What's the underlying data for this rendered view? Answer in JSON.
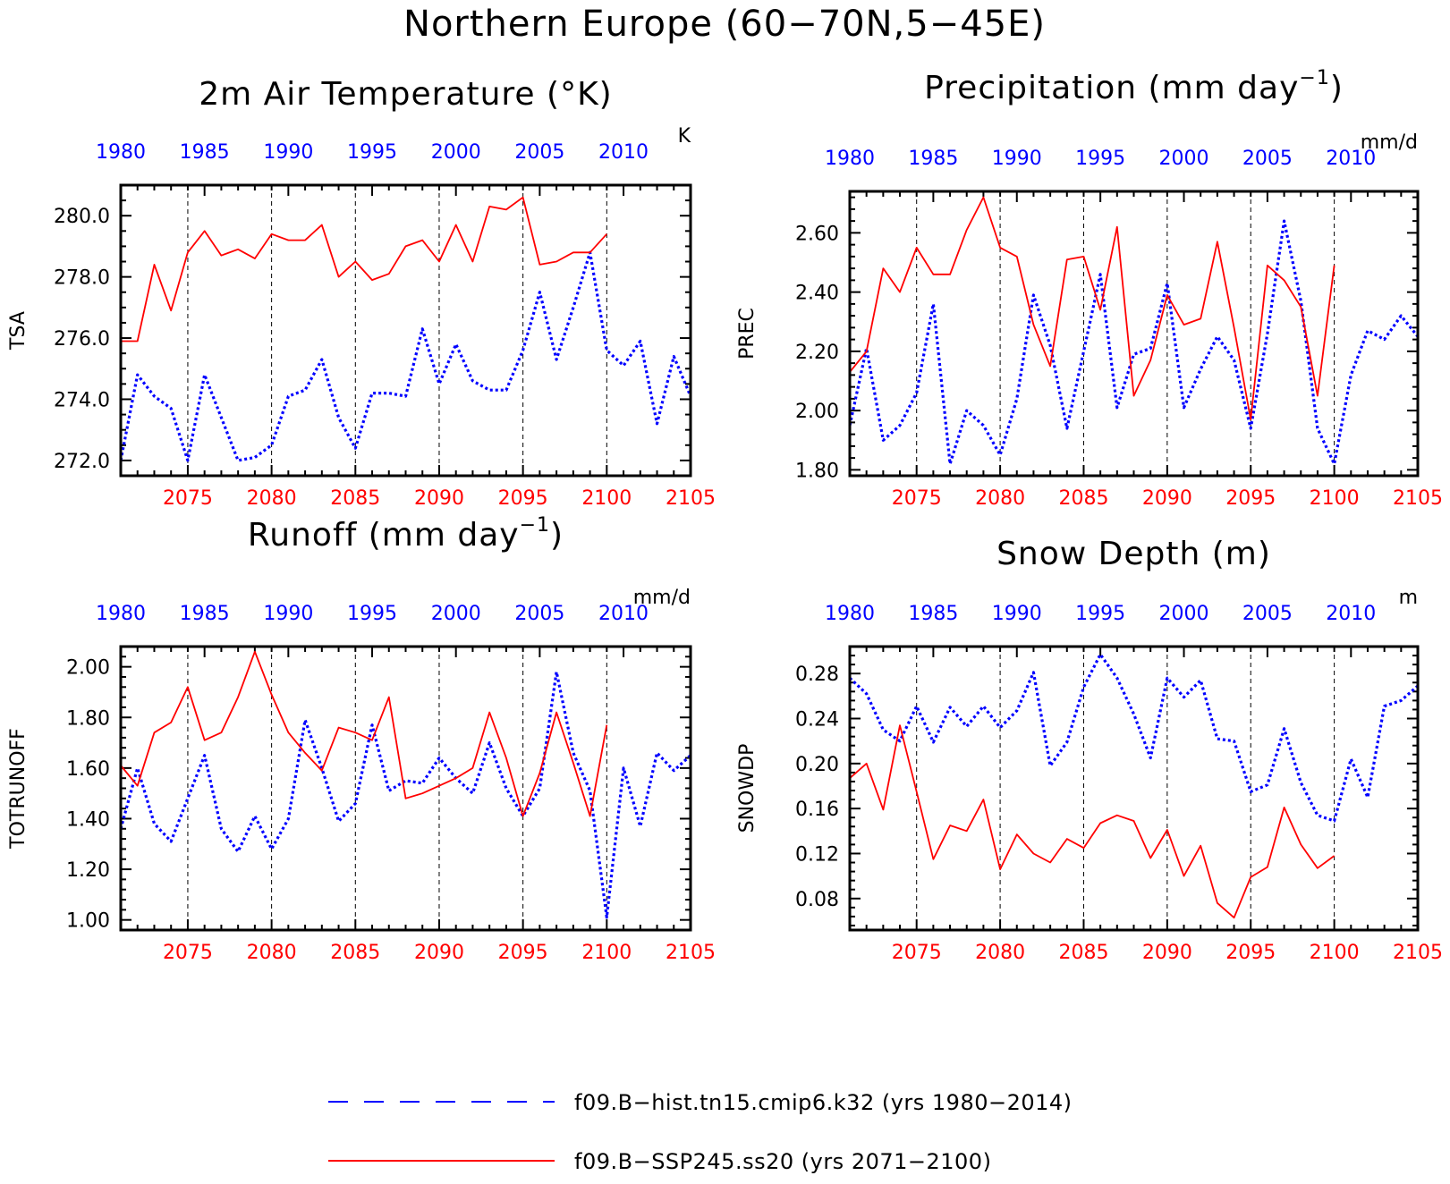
{
  "figure_title": "Northern Europe (60−70N,5−45E)",
  "colors": {
    "hist": "#0000ff",
    "future": "#ff0000",
    "vline": "#000000"
  },
  "legend": [
    {
      "label": "f09.B−hist.tn15.cmip6.k32 (yrs 1980−2014)",
      "color": "#0000ff",
      "style": "dashed"
    },
    {
      "label": "f09.B−SSP245.ss20 (yrs 2071−2100)",
      "color": "#ff0000",
      "style": "solid"
    }
  ],
  "chart_data": [
    {
      "type": "line",
      "title_main": "2m Air Temperature (°K)",
      "title_sup": "",
      "title_after": "",
      "ylabel": "TSA",
      "unit": "K",
      "ylim": [
        271.5,
        281.0
      ],
      "yticks": [
        272.0,
        274.0,
        276.0,
        278.0,
        280.0
      ],
      "yticklabels": [
        "272.0",
        "274.0",
        "276.0",
        "278.0",
        "280.0"
      ],
      "yminor": 0.5,
      "xlim_bottom": [
        2071,
        2105
      ],
      "xticks_bottom": [
        2075,
        2080,
        2085,
        2090,
        2095,
        2100,
        2105
      ],
      "xlim_top": [
        1980,
        2014
      ],
      "xticks_top": [
        1980,
        1985,
        1990,
        1995,
        2000,
        2005,
        2010
      ],
      "vlines": [
        2075,
        2080,
        2085,
        2090,
        2095,
        2100
      ],
      "series": [
        {
          "key": "hist",
          "axis": "top",
          "style": "dashed",
          "x": [
            1980,
            1981,
            1982,
            1983,
            1984,
            1985,
            1986,
            1987,
            1988,
            1989,
            1990,
            1991,
            1992,
            1993,
            1994,
            1995,
            1996,
            1997,
            1998,
            1999,
            2000,
            2001,
            2002,
            2003,
            2004,
            2005,
            2006,
            2007,
            2008,
            2009,
            2010,
            2011,
            2012,
            2013,
            2014
          ],
          "values": [
            272.0,
            274.8,
            274.1,
            273.7,
            272.0,
            274.8,
            273.4,
            272.0,
            272.1,
            272.5,
            274.1,
            274.3,
            275.3,
            273.4,
            272.4,
            274.2,
            274.2,
            274.1,
            276.3,
            274.5,
            275.8,
            274.6,
            274.3,
            274.3,
            275.6,
            277.5,
            275.3,
            277.0,
            278.8,
            275.6,
            275.1,
            275.9,
            273.2,
            275.4,
            274.1
          ]
        },
        {
          "key": "future",
          "axis": "bottom",
          "style": "solid",
          "x": [
            2071,
            2072,
            2073,
            2074,
            2075,
            2076,
            2077,
            2078,
            2079,
            2080,
            2081,
            2082,
            2083,
            2084,
            2085,
            2086,
            2087,
            2088,
            2089,
            2090,
            2091,
            2092,
            2093,
            2094,
            2095,
            2096,
            2097,
            2098,
            2099,
            2100
          ],
          "values": [
            275.9,
            275.9,
            278.4,
            276.9,
            278.8,
            279.5,
            278.7,
            278.9,
            278.6,
            279.4,
            279.2,
            279.2,
            279.7,
            278.0,
            278.5,
            277.9,
            278.1,
            279.0,
            279.2,
            278.5,
            279.7,
            278.5,
            280.3,
            280.2,
            280.6,
            278.4,
            278.5,
            278.8,
            278.8,
            279.4
          ]
        }
      ]
    },
    {
      "type": "line",
      "title_main": "Precipitation (mm day",
      "title_sup": "−1",
      "title_after": ")",
      "ylabel": "PREC",
      "unit": "mm/d",
      "ylim": [
        1.78,
        2.74
      ],
      "yticks": [
        1.8,
        2.0,
        2.2,
        2.4,
        2.6
      ],
      "yticklabels": [
        "1.80",
        "2.00",
        "2.20",
        "2.40",
        "2.60"
      ],
      "yminor": 0.04,
      "xlim_bottom": [
        2071,
        2105
      ],
      "xticks_bottom": [
        2075,
        2080,
        2085,
        2090,
        2095,
        2100,
        2105
      ],
      "xlim_top": [
        1980,
        2014
      ],
      "xticks_top": [
        1980,
        1985,
        1990,
        1995,
        2000,
        2005,
        2010
      ],
      "vlines": [
        2075,
        2080,
        2085,
        2090,
        2095,
        2100
      ],
      "series": [
        {
          "key": "hist",
          "axis": "top",
          "style": "dashed",
          "x": [
            1980,
            1981,
            1982,
            1983,
            1984,
            1985,
            1986,
            1987,
            1988,
            1989,
            1990,
            1991,
            1992,
            1993,
            1994,
            1995,
            1996,
            1997,
            1998,
            1999,
            2000,
            2001,
            2002,
            2003,
            2004,
            2005,
            2006,
            2007,
            2008,
            2009,
            2010,
            2011,
            2012,
            2013,
            2014
          ],
          "values": [
            1.95,
            2.21,
            1.9,
            1.95,
            2.06,
            2.36,
            1.82,
            2.0,
            1.95,
            1.85,
            2.04,
            2.39,
            2.22,
            1.94,
            2.2,
            2.46,
            2.01,
            2.19,
            2.21,
            2.43,
            2.01,
            2.14,
            2.25,
            2.17,
            1.94,
            2.26,
            2.64,
            2.37,
            1.94,
            1.82,
            2.12,
            2.27,
            2.24,
            2.32,
            2.25
          ]
        },
        {
          "key": "future",
          "axis": "bottom",
          "style": "solid",
          "x": [
            2071,
            2072,
            2073,
            2074,
            2075,
            2076,
            2077,
            2078,
            2079,
            2080,
            2081,
            2082,
            2083,
            2084,
            2085,
            2086,
            2087,
            2088,
            2089,
            2090,
            2091,
            2092,
            2093,
            2094,
            2095,
            2096,
            2097,
            2098,
            2099,
            2100
          ],
          "values": [
            2.13,
            2.2,
            2.48,
            2.4,
            2.55,
            2.46,
            2.46,
            2.61,
            2.72,
            2.55,
            2.52,
            2.29,
            2.15,
            2.51,
            2.52,
            2.34,
            2.62,
            2.05,
            2.17,
            2.39,
            2.29,
            2.31,
            2.57,
            2.28,
            1.97,
            2.49,
            2.44,
            2.35,
            2.05,
            2.49
          ]
        }
      ]
    },
    {
      "type": "line",
      "title_main": "Runoff (mm day",
      "title_sup": "−1",
      "title_after": ")",
      "ylabel": "TOTRUNOFF",
      "unit": "mm/d",
      "ylim": [
        0.96,
        2.08
      ],
      "yticks": [
        1.0,
        1.2,
        1.4,
        1.6,
        1.8,
        2.0
      ],
      "yticklabels": [
        "1.00",
        "1.20",
        "1.40",
        "1.60",
        "1.80",
        "2.00"
      ],
      "yminor": 0.04,
      "xlim_bottom": [
        2071,
        2105
      ],
      "xticks_bottom": [
        2075,
        2080,
        2085,
        2090,
        2095,
        2100,
        2105
      ],
      "xlim_top": [
        1980,
        2014
      ],
      "xticks_top": [
        1980,
        1985,
        1990,
        1995,
        2000,
        2005,
        2010
      ],
      "vlines": [
        2075,
        2080,
        2085,
        2090,
        2095,
        2100
      ],
      "series": [
        {
          "key": "hist",
          "axis": "top",
          "style": "dashed",
          "x": [
            1980,
            1981,
            1982,
            1983,
            1984,
            1985,
            1986,
            1987,
            1988,
            1989,
            1990,
            1991,
            1992,
            1993,
            1994,
            1995,
            1996,
            1997,
            1998,
            1999,
            2000,
            2001,
            2002,
            2003,
            2004,
            2005,
            2006,
            2007,
            2008,
            2009,
            2010,
            2011,
            2012,
            2013,
            2014
          ],
          "values": [
            1.36,
            1.6,
            1.38,
            1.31,
            1.48,
            1.65,
            1.36,
            1.27,
            1.41,
            1.28,
            1.4,
            1.79,
            1.6,
            1.39,
            1.46,
            1.77,
            1.51,
            1.55,
            1.54,
            1.64,
            1.56,
            1.5,
            1.7,
            1.52,
            1.41,
            1.52,
            1.98,
            1.66,
            1.51,
            1.01,
            1.6,
            1.37,
            1.66,
            1.59,
            1.65
          ]
        },
        {
          "key": "future",
          "axis": "bottom",
          "style": "solid",
          "x": [
            2071,
            2072,
            2073,
            2074,
            2075,
            2076,
            2077,
            2078,
            2079,
            2080,
            2081,
            2082,
            2083,
            2084,
            2085,
            2086,
            2087,
            2088,
            2089,
            2090,
            2091,
            2092,
            2093,
            2094,
            2095,
            2096,
            2097,
            2098,
            2099,
            2100
          ],
          "values": [
            1.61,
            1.53,
            1.74,
            1.78,
            1.92,
            1.71,
            1.74,
            1.88,
            2.06,
            1.89,
            1.74,
            1.66,
            1.59,
            1.76,
            1.74,
            1.71,
            1.88,
            1.48,
            1.5,
            1.53,
            1.56,
            1.6,
            1.82,
            1.64,
            1.41,
            1.58,
            1.82,
            1.62,
            1.41,
            1.77
          ]
        }
      ]
    },
    {
      "type": "line",
      "title_main": "Snow Depth (m)",
      "title_sup": "",
      "title_after": "",
      "ylabel": "SNOWDP",
      "unit": "m",
      "ylim": [
        0.052,
        0.304
      ],
      "yticks": [
        0.08,
        0.12,
        0.16,
        0.2,
        0.24,
        0.28
      ],
      "yticklabels": [
        "0.08",
        "0.12",
        "0.16",
        "0.20",
        "0.24",
        "0.28"
      ],
      "yminor": 0.008,
      "xlim_bottom": [
        2071,
        2105
      ],
      "xticks_bottom": [
        2075,
        2080,
        2085,
        2090,
        2095,
        2100,
        2105
      ],
      "xlim_top": [
        1980,
        2014
      ],
      "xticks_top": [
        1980,
        1985,
        1990,
        1995,
        2000,
        2005,
        2010
      ],
      "vlines": [
        2075,
        2080,
        2085,
        2090,
        2095,
        2100
      ],
      "series": [
        {
          "key": "hist",
          "axis": "top",
          "style": "dashed",
          "x": [
            1980,
            1981,
            1982,
            1983,
            1984,
            1985,
            1986,
            1987,
            1988,
            1989,
            1990,
            1991,
            1992,
            1993,
            1994,
            1995,
            1996,
            1997,
            1998,
            1999,
            2000,
            2001,
            2002,
            2003,
            2004,
            2005,
            2006,
            2007,
            2008,
            2009,
            2010,
            2011,
            2012,
            2013,
            2014
          ],
          "values": [
            0.276,
            0.262,
            0.23,
            0.22,
            0.251,
            0.219,
            0.25,
            0.233,
            0.251,
            0.232,
            0.247,
            0.281,
            0.198,
            0.219,
            0.268,
            0.297,
            0.276,
            0.244,
            0.205,
            0.276,
            0.259,
            0.274,
            0.222,
            0.22,
            0.175,
            0.181,
            0.231,
            0.183,
            0.154,
            0.149,
            0.204,
            0.17,
            0.251,
            0.256,
            0.269
          ]
        },
        {
          "key": "future",
          "axis": "bottom",
          "style": "solid",
          "x": [
            2071,
            2072,
            2073,
            2074,
            2075,
            2076,
            2077,
            2078,
            2079,
            2080,
            2081,
            2082,
            2083,
            2084,
            2085,
            2086,
            2087,
            2088,
            2089,
            2090,
            2091,
            2092,
            2093,
            2094,
            2095,
            2096,
            2097,
            2098,
            2099,
            2100
          ],
          "values": [
            0.187,
            0.2,
            0.159,
            0.234,
            0.175,
            0.115,
            0.145,
            0.14,
            0.168,
            0.106,
            0.137,
            0.12,
            0.112,
            0.133,
            0.125,
            0.147,
            0.154,
            0.149,
            0.116,
            0.141,
            0.1,
            0.127,
            0.076,
            0.063,
            0.099,
            0.108,
            0.161,
            0.128,
            0.107,
            0.118
          ]
        }
      ]
    }
  ]
}
